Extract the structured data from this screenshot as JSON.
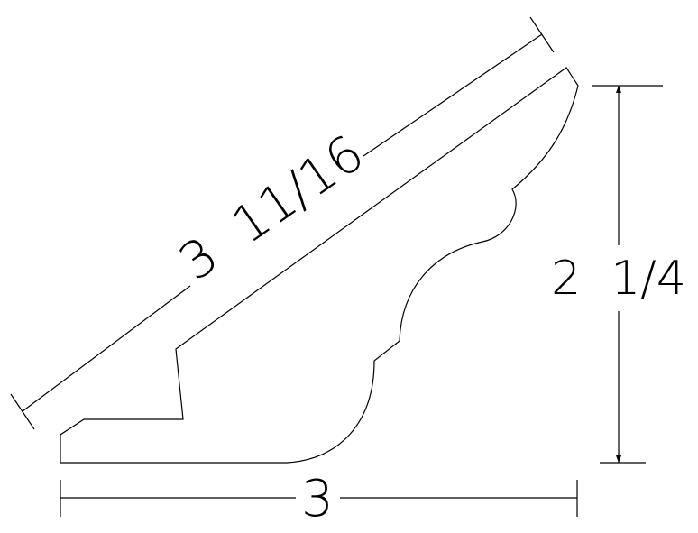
{
  "drawing": {
    "diagonal_dimension": "3  11/16",
    "height_dimension": "2  1/4",
    "width_dimension": "3"
  }
}
